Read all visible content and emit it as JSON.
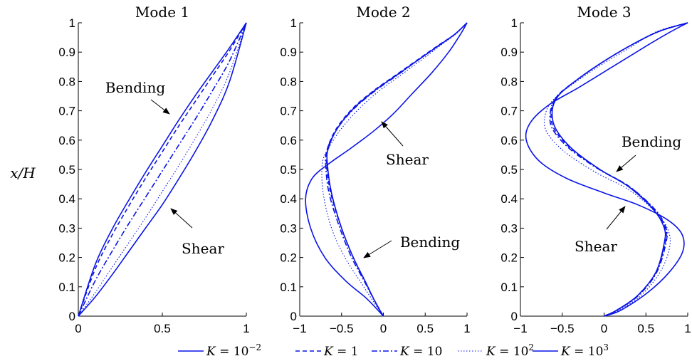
{
  "chart_data": {
    "type": "line",
    "ylabel": "x/H",
    "y_tick_labels": [
      "0",
      "0.1",
      "0.2",
      "0.3",
      "0.4",
      "0.5",
      "0.6",
      "0.7",
      "0.8",
      "0.9",
      "1"
    ],
    "color": "#0a14e6",
    "legend": [
      {
        "name": "K = 10",
        "exp": "−2",
        "style": "solid"
      },
      {
        "name": "K = 1",
        "exp": "",
        "style": "dashed"
      },
      {
        "name": "K = 10",
        "exp": "",
        "style": "dashdot"
      },
      {
        "name": "K = 10",
        "exp": "2",
        "style": "dotted"
      },
      {
        "name": "K = 10",
        "exp": "3",
        "style": "solid"
      }
    ],
    "panels": [
      {
        "title": "Mode 1",
        "xlim": [
          0,
          1
        ],
        "x_tick_labels": [
          "0",
          "0.5",
          "1"
        ],
        "x_ticks": [
          0,
          0.5,
          1
        ],
        "annotations": [
          {
            "text": "Bending",
            "x": 0.55,
            "y": 0.685
          },
          {
            "text": "Shear",
            "x": 0.55,
            "y": 0.38
          }
        ],
        "series": [
          {
            "style": "solid",
            "x": [
              0,
              0.1,
              0.2,
              0.3,
              0.4,
              0.5,
              0.6,
              0.7,
              0.8,
              0.9,
              1
            ],
            "y": [
              0,
              0.175,
              0.295,
              0.395,
              0.49,
              0.58,
              0.67,
              0.755,
              0.835,
              0.915,
              1
            ]
          },
          {
            "style": "dashed",
            "x": [
              0,
              0.1,
              0.2,
              0.3,
              0.4,
              0.5,
              0.6,
              0.7,
              0.8,
              0.9,
              1
            ],
            "y": [
              0,
              0.16,
              0.275,
              0.375,
              0.47,
              0.56,
              0.65,
              0.735,
              0.82,
              0.905,
              1
            ]
          },
          {
            "style": "dashdot",
            "x": [
              0,
              0.1,
              0.2,
              0.3,
              0.4,
              0.5,
              0.6,
              0.7,
              0.8,
              0.9,
              1
            ],
            "y": [
              0,
              0.12,
              0.22,
              0.315,
              0.405,
              0.495,
              0.585,
              0.675,
              0.77,
              0.87,
              1
            ]
          },
          {
            "style": "dotted",
            "x": [
              0,
              0.1,
              0.2,
              0.3,
              0.4,
              0.5,
              0.6,
              0.7,
              0.8,
              0.9,
              1
            ],
            "y": [
              0,
              0.08,
              0.165,
              0.25,
              0.335,
              0.425,
              0.515,
              0.61,
              0.71,
              0.83,
              1
            ]
          },
          {
            "style": "solid",
            "x": [
              0,
              0.1,
              0.2,
              0.3,
              0.4,
              0.5,
              0.6,
              0.7,
              0.8,
              0.9,
              1
            ],
            "y": [
              0,
              0.065,
              0.14,
              0.22,
              0.3,
              0.38,
              0.47,
              0.565,
              0.67,
              0.8,
              1
            ]
          }
        ]
      },
      {
        "title": "Mode 2",
        "xlim": [
          -1,
          1
        ],
        "x_tick_labels": [
          "−1",
          "−0.5",
          "0",
          "0.5",
          "1"
        ],
        "x_ticks": [
          -1,
          -0.5,
          0,
          0.5,
          1
        ],
        "annotations": [
          {
            "text": "Shear",
            "x": 0.05,
            "y": 0.54
          },
          {
            "text": "Bending",
            "x": 0.2,
            "y": 0.25
          }
        ],
        "series": [
          {
            "style": "solid",
            "x": [
              0,
              -0.1,
              -0.22,
              -0.36,
              -0.5,
              -0.62,
              -0.67,
              -0.66,
              -0.55,
              -0.35,
              -0.1,
              0.15,
              0.4,
              0.65,
              0.85,
              1
            ],
            "y": [
              0,
              0.05,
              0.12,
              0.2,
              0.3,
              0.42,
              0.52,
              0.57,
              0.64,
              0.71,
              0.77,
              0.82,
              0.87,
              0.92,
              0.96,
              1
            ]
          },
          {
            "style": "dashed",
            "x": [
              0,
              -0.1,
              -0.22,
              -0.36,
              -0.5,
              -0.63,
              -0.68,
              -0.67,
              -0.56,
              -0.36,
              -0.11,
              0.14,
              0.39,
              0.64,
              0.85,
              1
            ],
            "y": [
              0,
              0.05,
              0.12,
              0.2,
              0.3,
              0.42,
              0.52,
              0.57,
              0.64,
              0.71,
              0.77,
              0.82,
              0.87,
              0.92,
              0.96,
              1
            ]
          },
          {
            "style": "dashdot",
            "x": [
              0,
              -0.1,
              -0.23,
              -0.38,
              -0.52,
              -0.65,
              -0.69,
              -0.67,
              -0.55,
              -0.34,
              -0.09,
              0.16,
              0.4,
              0.65,
              0.85,
              1
            ],
            "y": [
              0,
              0.05,
              0.12,
              0.2,
              0.3,
              0.42,
              0.52,
              0.57,
              0.64,
              0.71,
              0.77,
              0.82,
              0.87,
              0.92,
              0.96,
              1
            ]
          },
          {
            "style": "dotted",
            "x": [
              0,
              -0.12,
              -0.28,
              -0.46,
              -0.62,
              -0.72,
              -0.73,
              -0.66,
              -0.5,
              -0.28,
              -0.04,
              0.2,
              0.44,
              0.67,
              0.86,
              1
            ],
            "y": [
              0,
              0.05,
              0.12,
              0.2,
              0.3,
              0.42,
              0.52,
              0.57,
              0.64,
              0.71,
              0.77,
              0.82,
              0.87,
              0.92,
              0.96,
              1
            ]
          },
          {
            "style": "solid",
            "x": [
              0,
              -0.2,
              -0.45,
              -0.7,
              -0.87,
              -0.93,
              -0.85,
              -0.65,
              -0.4,
              -0.12,
              0.12,
              0.35,
              0.58,
              0.78,
              0.92,
              1
            ],
            "y": [
              0,
              0.06,
              0.12,
              0.2,
              0.3,
              0.4,
              0.47,
              0.52,
              0.57,
              0.63,
              0.69,
              0.76,
              0.83,
              0.9,
              0.96,
              1
            ]
          }
        ]
      },
      {
        "title": "Mode 3",
        "xlim": [
          -1,
          1
        ],
        "x_tick_labels": [
          "−1",
          "−0.5",
          "0",
          "0.5",
          "1"
        ],
        "x_ticks": [
          -1,
          -0.5,
          0,
          0.5,
          1
        ],
        "annotations": [
          {
            "text": "Bending",
            "x": 0.55,
            "y": 0.58
          },
          {
            "text": "Shear",
            "x": -0.12,
            "y": 0.22
          }
        ],
        "series": [
          {
            "style": "solid",
            "x": [
              0,
              0.15,
              0.4,
              0.62,
              0.72,
              0.72,
              0.6,
              0.3,
              -0.05,
              -0.38,
              -0.58,
              -0.62,
              -0.55,
              -0.35,
              -0.05,
              0.3,
              0.65,
              1
            ],
            "y": [
              0,
              0.02,
              0.07,
              0.15,
              0.25,
              0.3,
              0.36,
              0.44,
              0.5,
              0.57,
              0.64,
              0.7,
              0.75,
              0.8,
              0.86,
              0.92,
              0.97,
              1
            ]
          },
          {
            "style": "dashed",
            "x": [
              0,
              0.15,
              0.4,
              0.62,
              0.73,
              0.73,
              0.61,
              0.31,
              -0.05,
              -0.39,
              -0.6,
              -0.63,
              -0.56,
              -0.35,
              -0.05,
              0.3,
              0.65,
              1
            ],
            "y": [
              0,
              0.02,
              0.07,
              0.15,
              0.25,
              0.3,
              0.36,
              0.44,
              0.5,
              0.57,
              0.64,
              0.7,
              0.75,
              0.8,
              0.86,
              0.92,
              0.97,
              1
            ]
          },
          {
            "style": "dashdot",
            "x": [
              0,
              0.15,
              0.41,
              0.63,
              0.74,
              0.74,
              0.62,
              0.31,
              -0.06,
              -0.41,
              -0.62,
              -0.64,
              -0.56,
              -0.35,
              -0.05,
              0.3,
              0.65,
              1
            ],
            "y": [
              0,
              0.02,
              0.07,
              0.15,
              0.25,
              0.3,
              0.36,
              0.44,
              0.5,
              0.57,
              0.64,
              0.7,
              0.75,
              0.8,
              0.86,
              0.92,
              0.97,
              1
            ]
          },
          {
            "style": "dotted",
            "x": [
              0,
              0.17,
              0.44,
              0.67,
              0.78,
              0.77,
              0.63,
              0.3,
              -0.1,
              -0.47,
              -0.69,
              -0.7,
              -0.6,
              -0.38,
              -0.07,
              0.28,
              0.63,
              1
            ],
            "y": [
              0,
              0.02,
              0.07,
              0.15,
              0.23,
              0.29,
              0.35,
              0.43,
              0.49,
              0.56,
              0.63,
              0.69,
              0.74,
              0.79,
              0.85,
              0.91,
              0.97,
              1
            ]
          },
          {
            "style": "solid",
            "x": [
              0,
              0.2,
              0.52,
              0.78,
              0.94,
              0.93,
              0.75,
              0.4,
              0,
              -0.45,
              -0.78,
              -0.93,
              -0.88,
              -0.66,
              -0.3,
              0.1,
              0.5,
              0.8,
              1
            ],
            "y": [
              0,
              0.02,
              0.08,
              0.15,
              0.22,
              0.28,
              0.33,
              0.38,
              0.42,
              0.47,
              0.53,
              0.6,
              0.66,
              0.72,
              0.78,
              0.85,
              0.92,
              0.97,
              1
            ]
          }
        ]
      }
    ]
  }
}
